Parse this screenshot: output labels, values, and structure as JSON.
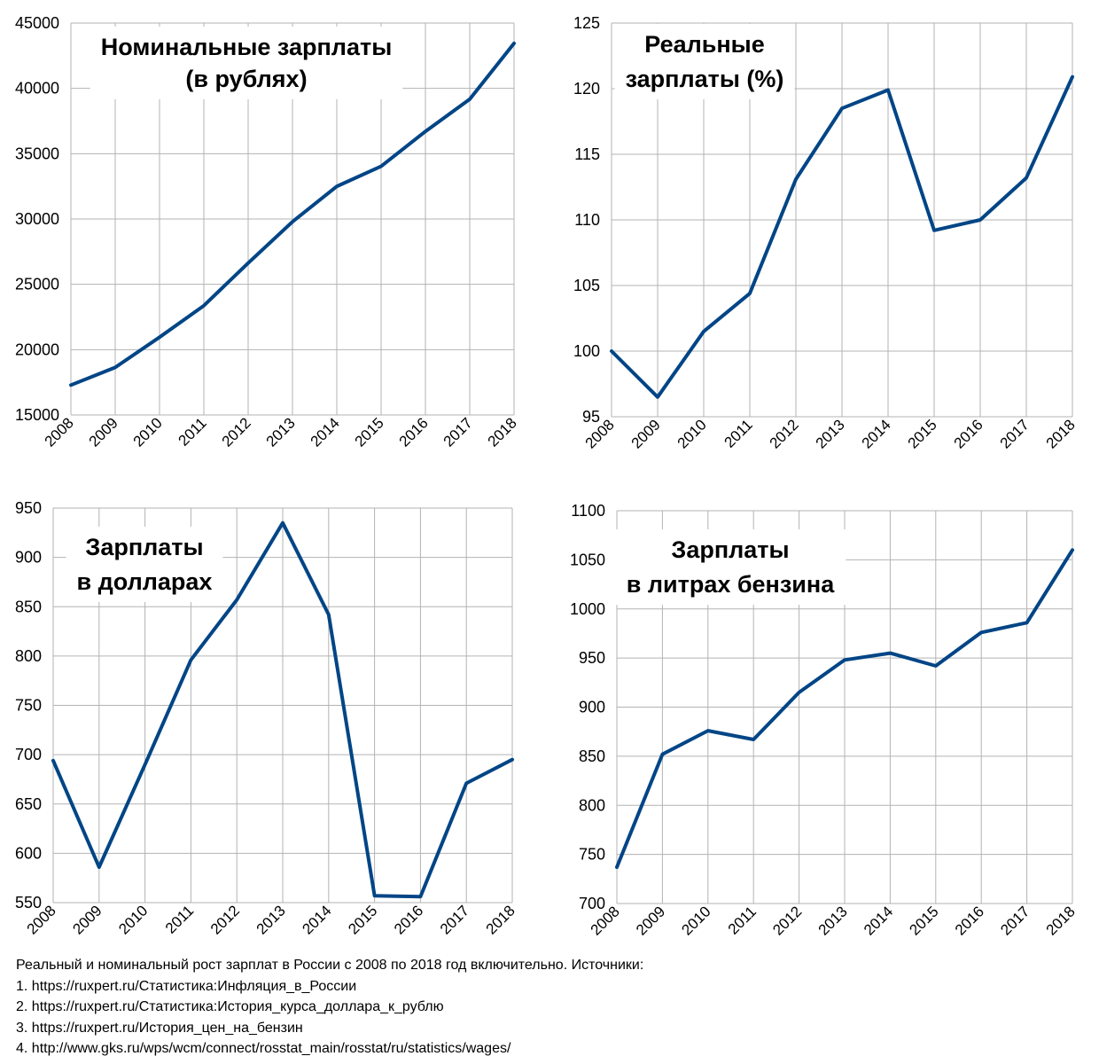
{
  "chart_data": [
    {
      "type": "line",
      "title": [
        "Номинальные зарплаты",
        "(в рублях)"
      ],
      "x": [
        "2008",
        "2009",
        "2010",
        "2011",
        "2012",
        "2013",
        "2014",
        "2015",
        "2016",
        "2017",
        "2018"
      ],
      "series": [
        {
          "values": [
            17290,
            18638,
            20952,
            23369,
            26629,
            29792,
            32495,
            34030,
            36709,
            39167,
            43445
          ]
        }
      ],
      "ylim": [
        15000,
        45000
      ],
      "yticks": [
        15000,
        20000,
        25000,
        30000,
        35000,
        40000,
        45000
      ],
      "grid": true,
      "color": "#004586"
    },
    {
      "type": "line",
      "title": [
        "Реальные",
        "зарплаты (%)"
      ],
      "x": [
        "2008",
        "2009",
        "2010",
        "2011",
        "2012",
        "2013",
        "2014",
        "2015",
        "2016",
        "2017",
        "2018"
      ],
      "series": [
        {
          "values": [
            100,
            96.5,
            101.5,
            104.4,
            113.1,
            118.5,
            119.9,
            109.2,
            110.0,
            113.2,
            120.9
          ]
        }
      ],
      "ylim": [
        95,
        125
      ],
      "yticks": [
        95,
        100,
        105,
        110,
        115,
        120,
        125
      ],
      "grid": true,
      "color": "#004586"
    },
    {
      "type": "line",
      "title": [
        "Зарплаты",
        "в долларах"
      ],
      "x": [
        "2008",
        "2009",
        "2010",
        "2011",
        "2012",
        "2013",
        "2014",
        "2015",
        "2016",
        "2017",
        "2018"
      ],
      "series": [
        {
          "values": [
            694,
            586,
            690,
            796,
            857,
            935,
            842,
            557,
            556,
            671,
            695
          ]
        }
      ],
      "ylim": [
        550,
        950
      ],
      "yticks": [
        550,
        600,
        650,
        700,
        750,
        800,
        850,
        900,
        950
      ],
      "grid": true,
      "color": "#004586"
    },
    {
      "type": "line",
      "title": [
        "Зарплаты",
        "в литрах бензина"
      ],
      "x": [
        "2008",
        "2009",
        "2010",
        "2011",
        "2012",
        "2013",
        "2014",
        "2015",
        "2016",
        "2017",
        "2018"
      ],
      "series": [
        {
          "values": [
            737,
            852,
            876,
            867,
            915,
            948,
            955,
            942,
            976,
            986,
            1060
          ]
        }
      ],
      "ylim": [
        700,
        1100
      ],
      "yticks": [
        700,
        750,
        800,
        850,
        900,
        950,
        1000,
        1050,
        1100
      ],
      "grid": true,
      "color": "#004586"
    }
  ],
  "caption": [
    "Реальный и номинальный рост зарплат в России с 2008 по 2018 год включительно. Источники:",
    "1. https://ruxpert.ru/Статистика:Инфляция_в_России",
    "2. https://ruxpert.ru/Статистика:История_курса_доллара_к_рублю",
    "3. https://ruxpert.ru/История_цен_на_бензин",
    "4. http://www.gks.ru/wps/wcm/connect/rosstat_main/rosstat/ru/statistics/wages/"
  ]
}
